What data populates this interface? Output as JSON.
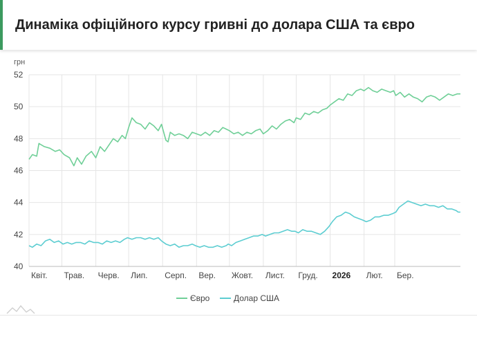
{
  "header": {
    "title": "Динаміка офіційного курсу гривні до долара США та євро"
  },
  "colors": {
    "accent": "#3c9a5f",
    "euro": "#6fcf97",
    "usd": "#5ccdd1",
    "grid": "#e5e5e5",
    "axis": "#bbbbbb"
  },
  "chart_data": {
    "type": "line",
    "title": "Динаміка офіційного курсу гривні до долара США та євро",
    "ylabel": "грн",
    "xlabel": "",
    "ylim": [
      40,
      52
    ],
    "yticks": [
      40,
      42,
      44,
      46,
      48,
      50,
      52
    ],
    "xlim": [
      "2025-04-01",
      "2026-04-30"
    ],
    "x_ticks": [
      {
        "label": "Квіт.",
        "date": "2025-04-01",
        "bold": false
      },
      {
        "label": "Трав.",
        "date": "2025-05-01",
        "bold": false
      },
      {
        "label": "Черв.",
        "date": "2025-06-01",
        "bold": false
      },
      {
        "label": "Лип.",
        "date": "2025-07-01",
        "bold": false
      },
      {
        "label": "Серп.",
        "date": "2025-08-01",
        "bold": false
      },
      {
        "label": "Вер.",
        "date": "2025-09-01",
        "bold": false
      },
      {
        "label": "Жовт.",
        "date": "2025-10-01",
        "bold": false
      },
      {
        "label": "Лист.",
        "date": "2025-11-01",
        "bold": false
      },
      {
        "label": "Груд.",
        "date": "2025-12-01",
        "bold": false
      },
      {
        "label": "2026",
        "date": "2026-01-01",
        "bold": true
      },
      {
        "label": "Лют.",
        "date": "2026-02-01",
        "bold": false
      },
      {
        "label": "Бер.",
        "date": "2026-03-01",
        "bold": false
      }
    ],
    "grid": true,
    "legend": "bottom-center",
    "series": [
      {
        "name": "Євро",
        "color": "#6fcf97",
        "points": [
          [
            "2025-04-01",
            46.7
          ],
          [
            "2025-04-04",
            47.0
          ],
          [
            "2025-04-08",
            46.9
          ],
          [
            "2025-04-10",
            47.7
          ],
          [
            "2025-04-15",
            47.5
          ],
          [
            "2025-04-20",
            47.4
          ],
          [
            "2025-04-25",
            47.2
          ],
          [
            "2025-04-29",
            47.3
          ],
          [
            "2025-05-03",
            47.0
          ],
          [
            "2025-05-08",
            46.8
          ],
          [
            "2025-05-12",
            46.3
          ],
          [
            "2025-05-15",
            46.8
          ],
          [
            "2025-05-19",
            46.4
          ],
          [
            "2025-05-23",
            46.9
          ],
          [
            "2025-05-28",
            47.2
          ],
          [
            "2025-06-01",
            46.8
          ],
          [
            "2025-06-05",
            47.5
          ],
          [
            "2025-06-09",
            47.2
          ],
          [
            "2025-06-13",
            47.6
          ],
          [
            "2025-06-17",
            48.0
          ],
          [
            "2025-06-21",
            47.8
          ],
          [
            "2025-06-25",
            48.2
          ],
          [
            "2025-06-28",
            48.0
          ],
          [
            "2025-07-01",
            48.7
          ],
          [
            "2025-07-04",
            49.3
          ],
          [
            "2025-07-08",
            49.0
          ],
          [
            "2025-07-12",
            48.9
          ],
          [
            "2025-07-16",
            48.6
          ],
          [
            "2025-07-20",
            49.0
          ],
          [
            "2025-07-24",
            48.8
          ],
          [
            "2025-07-28",
            48.5
          ],
          [
            "2025-07-31",
            48.9
          ],
          [
            "2025-08-04",
            47.9
          ],
          [
            "2025-08-06",
            47.8
          ],
          [
            "2025-08-08",
            48.4
          ],
          [
            "2025-08-12",
            48.2
          ],
          [
            "2025-08-16",
            48.3
          ],
          [
            "2025-08-20",
            48.2
          ],
          [
            "2025-08-24",
            48.0
          ],
          [
            "2025-08-28",
            48.4
          ],
          [
            "2025-09-01",
            48.3
          ],
          [
            "2025-09-05",
            48.2
          ],
          [
            "2025-09-09",
            48.4
          ],
          [
            "2025-09-13",
            48.2
          ],
          [
            "2025-09-17",
            48.5
          ],
          [
            "2025-09-21",
            48.4
          ],
          [
            "2025-09-25",
            48.7
          ],
          [
            "2025-09-28",
            48.6
          ],
          [
            "2025-10-01",
            48.5
          ],
          [
            "2025-10-05",
            48.3
          ],
          [
            "2025-10-09",
            48.4
          ],
          [
            "2025-10-13",
            48.2
          ],
          [
            "2025-10-17",
            48.4
          ],
          [
            "2025-10-21",
            48.3
          ],
          [
            "2025-10-25",
            48.5
          ],
          [
            "2025-10-29",
            48.6
          ],
          [
            "2025-11-01",
            48.3
          ],
          [
            "2025-11-05",
            48.5
          ],
          [
            "2025-11-09",
            48.8
          ],
          [
            "2025-11-13",
            48.6
          ],
          [
            "2025-11-17",
            48.9
          ],
          [
            "2025-11-21",
            49.1
          ],
          [
            "2025-11-25",
            49.2
          ],
          [
            "2025-11-29",
            49.0
          ],
          [
            "2025-12-01",
            49.3
          ],
          [
            "2025-12-05",
            49.2
          ],
          [
            "2025-12-09",
            49.6
          ],
          [
            "2025-12-13",
            49.5
          ],
          [
            "2025-12-17",
            49.7
          ],
          [
            "2025-12-21",
            49.6
          ],
          [
            "2025-12-25",
            49.8
          ],
          [
            "2025-12-29",
            49.9
          ],
          [
            "2026-01-01",
            50.1
          ],
          [
            "2026-01-05",
            50.3
          ],
          [
            "2026-01-09",
            50.5
          ],
          [
            "2026-01-13",
            50.4
          ],
          [
            "2026-01-17",
            50.8
          ],
          [
            "2026-01-21",
            50.7
          ],
          [
            "2026-01-25",
            51.0
          ],
          [
            "2026-01-29",
            51.1
          ],
          [
            "2026-02-01",
            51.0
          ],
          [
            "2026-02-05",
            51.2
          ],
          [
            "2026-02-09",
            51.0
          ],
          [
            "2026-02-13",
            50.9
          ],
          [
            "2026-02-17",
            51.1
          ],
          [
            "2026-02-21",
            51.0
          ],
          [
            "2026-02-25",
            50.9
          ],
          [
            "2026-02-28",
            51.0
          ],
          [
            "2026-03-02",
            50.7
          ],
          [
            "2026-03-06",
            50.9
          ],
          [
            "2026-03-10",
            50.6
          ],
          [
            "2026-03-14",
            50.8
          ],
          [
            "2026-03-18",
            50.6
          ],
          [
            "2026-03-22",
            50.5
          ],
          [
            "2026-03-26",
            50.3
          ],
          [
            "2026-03-30",
            50.6
          ],
          [
            "2026-04-03",
            50.7
          ],
          [
            "2026-04-07",
            50.6
          ],
          [
            "2026-04-11",
            50.4
          ],
          [
            "2026-04-15",
            50.6
          ],
          [
            "2026-04-19",
            50.8
          ],
          [
            "2026-04-23",
            50.7
          ],
          [
            "2026-04-27",
            50.8
          ],
          [
            "2026-04-30",
            50.8
          ]
        ]
      },
      {
        "name": "Долар США",
        "color": "#5ccdd1",
        "points": [
          [
            "2025-04-01",
            41.3
          ],
          [
            "2025-04-04",
            41.2
          ],
          [
            "2025-04-08",
            41.4
          ],
          [
            "2025-04-12",
            41.3
          ],
          [
            "2025-04-16",
            41.6
          ],
          [
            "2025-04-20",
            41.7
          ],
          [
            "2025-04-24",
            41.5
          ],
          [
            "2025-04-28",
            41.6
          ],
          [
            "2025-05-02",
            41.4
          ],
          [
            "2025-05-06",
            41.5
          ],
          [
            "2025-05-10",
            41.4
          ],
          [
            "2025-05-14",
            41.5
          ],
          [
            "2025-05-18",
            41.5
          ],
          [
            "2025-05-22",
            41.4
          ],
          [
            "2025-05-26",
            41.6
          ],
          [
            "2025-05-30",
            41.5
          ],
          [
            "2025-06-03",
            41.5
          ],
          [
            "2025-06-07",
            41.4
          ],
          [
            "2025-06-11",
            41.6
          ],
          [
            "2025-06-15",
            41.5
          ],
          [
            "2025-06-19",
            41.6
          ],
          [
            "2025-06-23",
            41.5
          ],
          [
            "2025-06-27",
            41.7
          ],
          [
            "2025-06-30",
            41.8
          ],
          [
            "2025-07-04",
            41.7
          ],
          [
            "2025-07-08",
            41.8
          ],
          [
            "2025-07-12",
            41.8
          ],
          [
            "2025-07-16",
            41.7
          ],
          [
            "2025-07-20",
            41.8
          ],
          [
            "2025-07-24",
            41.7
          ],
          [
            "2025-07-28",
            41.8
          ],
          [
            "2025-07-31",
            41.6
          ],
          [
            "2025-08-04",
            41.4
          ],
          [
            "2025-08-08",
            41.3
          ],
          [
            "2025-08-12",
            41.4
          ],
          [
            "2025-08-16",
            41.2
          ],
          [
            "2025-08-20",
            41.3
          ],
          [
            "2025-08-24",
            41.3
          ],
          [
            "2025-08-28",
            41.4
          ],
          [
            "2025-08-31",
            41.3
          ],
          [
            "2025-09-04",
            41.2
          ],
          [
            "2025-09-08",
            41.3
          ],
          [
            "2025-09-12",
            41.2
          ],
          [
            "2025-09-16",
            41.2
          ],
          [
            "2025-09-20",
            41.3
          ],
          [
            "2025-09-24",
            41.2
          ],
          [
            "2025-09-28",
            41.3
          ],
          [
            "2025-09-30",
            41.4
          ],
          [
            "2025-10-03",
            41.3
          ],
          [
            "2025-10-07",
            41.5
          ],
          [
            "2025-10-11",
            41.6
          ],
          [
            "2025-10-15",
            41.7
          ],
          [
            "2025-10-19",
            41.8
          ],
          [
            "2025-10-23",
            41.9
          ],
          [
            "2025-10-27",
            41.9
          ],
          [
            "2025-10-31",
            42.0
          ],
          [
            "2025-11-03",
            41.9
          ],
          [
            "2025-11-07",
            42.0
          ],
          [
            "2025-11-11",
            42.1
          ],
          [
            "2025-11-15",
            42.1
          ],
          [
            "2025-11-19",
            42.2
          ],
          [
            "2025-11-23",
            42.3
          ],
          [
            "2025-11-27",
            42.2
          ],
          [
            "2025-11-30",
            42.2
          ],
          [
            "2025-12-03",
            42.1
          ],
          [
            "2025-12-07",
            42.3
          ],
          [
            "2025-12-11",
            42.2
          ],
          [
            "2025-12-15",
            42.2
          ],
          [
            "2025-12-19",
            42.1
          ],
          [
            "2025-12-23",
            42.0
          ],
          [
            "2025-12-27",
            42.2
          ],
          [
            "2025-12-31",
            42.5
          ],
          [
            "2026-01-03",
            42.8
          ],
          [
            "2026-01-07",
            43.1
          ],
          [
            "2026-01-11",
            43.2
          ],
          [
            "2026-01-15",
            43.4
          ],
          [
            "2026-01-19",
            43.3
          ],
          [
            "2026-01-23",
            43.1
          ],
          [
            "2026-01-27",
            43.0
          ],
          [
            "2026-01-31",
            42.9
          ],
          [
            "2026-02-03",
            42.8
          ],
          [
            "2026-02-07",
            42.9
          ],
          [
            "2026-02-11",
            43.1
          ],
          [
            "2026-02-15",
            43.1
          ],
          [
            "2026-02-19",
            43.2
          ],
          [
            "2026-02-23",
            43.2
          ],
          [
            "2026-02-27",
            43.3
          ],
          [
            "2026-03-02",
            43.4
          ],
          [
            "2026-03-05",
            43.7
          ],
          [
            "2026-03-09",
            43.9
          ],
          [
            "2026-03-13",
            44.1
          ],
          [
            "2026-03-17",
            44.0
          ],
          [
            "2026-03-21",
            43.9
          ],
          [
            "2026-03-25",
            43.8
          ],
          [
            "2026-03-29",
            43.9
          ],
          [
            "2026-04-02",
            43.8
          ],
          [
            "2026-04-06",
            43.8
          ],
          [
            "2026-04-10",
            43.7
          ],
          [
            "2026-04-14",
            43.8
          ],
          [
            "2026-04-18",
            43.6
          ],
          [
            "2026-04-22",
            43.6
          ],
          [
            "2026-04-26",
            43.5
          ],
          [
            "2026-04-28",
            43.4
          ],
          [
            "2026-04-30",
            43.4
          ]
        ]
      }
    ]
  }
}
